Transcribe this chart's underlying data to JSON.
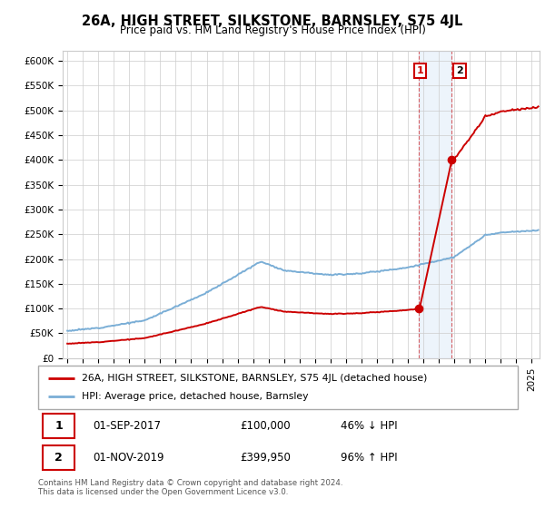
{
  "title": "26A, HIGH STREET, SILKSTONE, BARNSLEY, S75 4JL",
  "subtitle": "Price paid vs. HM Land Registry's House Price Index (HPI)",
  "ylim": [
    0,
    620000
  ],
  "yticks": [
    0,
    50000,
    100000,
    150000,
    200000,
    250000,
    300000,
    350000,
    400000,
    450000,
    500000,
    550000,
    600000
  ],
  "ytick_labels": [
    "£0",
    "£50K",
    "£100K",
    "£150K",
    "£200K",
    "£250K",
    "£300K",
    "£350K",
    "£400K",
    "£450K",
    "£500K",
    "£550K",
    "£600K"
  ],
  "hpi_color": "#7aaed6",
  "price_color": "#cc0000",
  "shade_color": "#cce0f5",
  "transaction1": {
    "date_num": 2017.67,
    "price": 100000,
    "label": "1"
  },
  "transaction2": {
    "date_num": 2019.83,
    "price": 399950,
    "label": "2"
  },
  "legend_entries": [
    "26A, HIGH STREET, SILKSTONE, BARNSLEY, S75 4JL (detached house)",
    "HPI: Average price, detached house, Barnsley"
  ],
  "table_rows": [
    [
      "1",
      "01-SEP-2017",
      "£100,000",
      "46% ↓ HPI"
    ],
    [
      "2",
      "01-NOV-2019",
      "£399,950",
      "96% ↑ HPI"
    ]
  ],
  "footer": "Contains HM Land Registry data © Crown copyright and database right 2024.\nThis data is licensed under the Open Government Licence v3.0.",
  "background_color": "#ffffff",
  "grid_color": "#cccccc",
  "xstart": 1995,
  "xend": 2025
}
